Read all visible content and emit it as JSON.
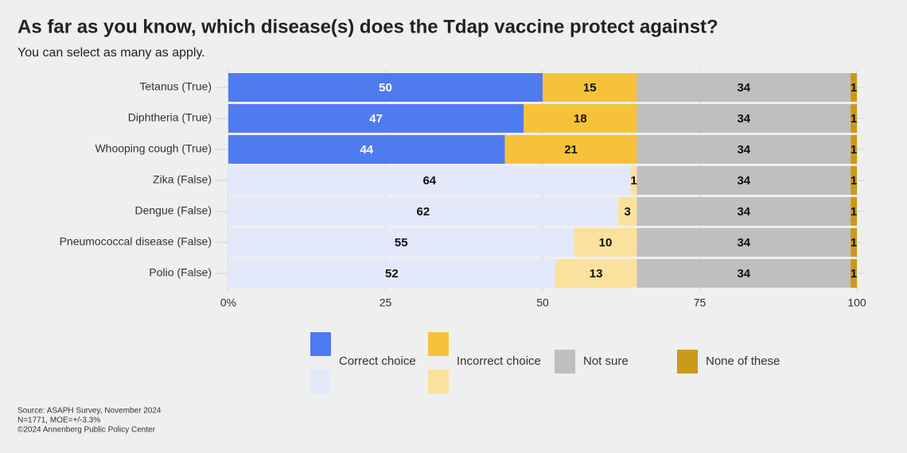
{
  "chart_data": {
    "type": "stacked_bar_horizontal",
    "title": "As far as you know, which disease(s) does the Tdap vaccine protect against?",
    "subtitle": "You can select as many as apply.",
    "source": [
      "Source: ASAPH Survey, November 2024",
      "N=1771, MOE=+/-3.3%",
      "©2024 Annenberg Public Policy Center"
    ],
    "categories": [
      "Tetanus (True)",
      "Diphtheria (True)",
      "Whooping cough (True)",
      "Zika (False)",
      "Dengue (False)",
      "Pneumococcal disease (False)",
      "Polio (False)"
    ],
    "series": [
      {
        "name": "Correct choice",
        "colors": [
          "#4f7bf0",
          "#4f7bf0",
          "#4f7bf0",
          "#e3e9fb",
          "#e3e9fb",
          "#e3e9fb",
          "#e3e9fb"
        ],
        "values": [
          50,
          47,
          44,
          64,
          62,
          55,
          52
        ]
      },
      {
        "name": "Incorrect choice",
        "colors": [
          "#f7c23b",
          "#f7c23b",
          "#f7c23b",
          "#fbe19e",
          "#fbe19e",
          "#fbe19e",
          "#fbe19e"
        ],
        "values": [
          15,
          18,
          21,
          1,
          3,
          10,
          13
        ]
      },
      {
        "name": "Not sure",
        "colors": [
          "#bfbfbf",
          "#bfbfbf",
          "#bfbfbf",
          "#bfbfbf",
          "#bfbfbf",
          "#bfbfbf",
          "#bfbfbf"
        ],
        "values": [
          34,
          34,
          34,
          34,
          34,
          34,
          34
        ]
      },
      {
        "name": "None of these",
        "colors": [
          "#c99a1a",
          "#c99a1a",
          "#c99a1a",
          "#c99a1a",
          "#c99a1a",
          "#c99a1a",
          "#c99a1a"
        ],
        "values": [
          1,
          1,
          1,
          1,
          1,
          1,
          1
        ]
      }
    ],
    "xlim": [
      0,
      100
    ],
    "xticks": [
      {
        "value": 0,
        "label": "0%"
      },
      25,
      50,
      75,
      100
    ],
    "grid": true
  }
}
